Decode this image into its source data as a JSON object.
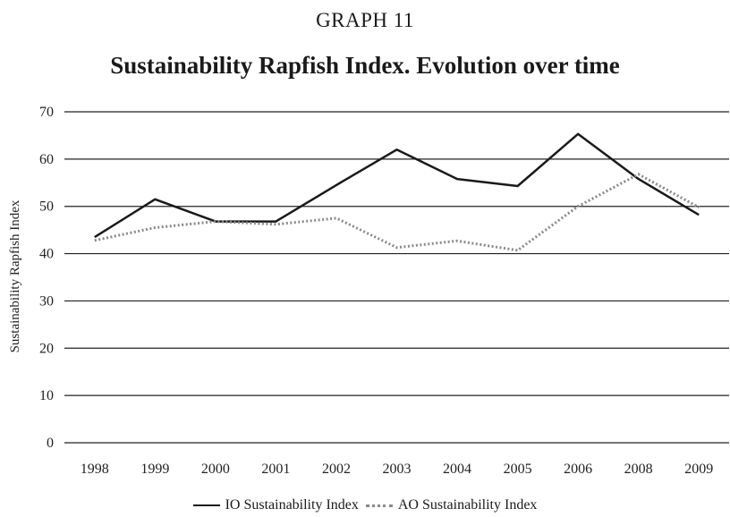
{
  "header": {
    "graph_label": "GRAPH 11"
  },
  "chart_data": {
    "type": "line",
    "title": "Sustainability Rapfish Index. Evolution over time",
    "xlabel": "",
    "ylabel": "Sustainability Rapfish Index",
    "categories": [
      "1998",
      "1999",
      "2000",
      "2001",
      "2002",
      "2003",
      "2004",
      "2005",
      "2006",
      "2008",
      "2009"
    ],
    "y_ticks": [
      "0",
      "10",
      "20",
      "30",
      "40",
      "50",
      "60",
      "70"
    ],
    "ylim": [
      0,
      70
    ],
    "grid": true,
    "legend_position": "bottom",
    "series": [
      {
        "name": "IO Sustainability Index",
        "color": "#1a1a1a",
        "style": "solid",
        "values": [
          43.5,
          51.5,
          46.8,
          46.8,
          54.5,
          62.0,
          55.8,
          54.3,
          65.3,
          55.8,
          48.2
        ]
      },
      {
        "name": "AO Sustainability Index",
        "color": "#8a8a8a",
        "style": "dotted",
        "values": [
          42.8,
          45.5,
          46.8,
          46.2,
          47.5,
          41.3,
          42.7,
          40.7,
          50.0,
          56.8,
          49.8
        ]
      }
    ]
  }
}
